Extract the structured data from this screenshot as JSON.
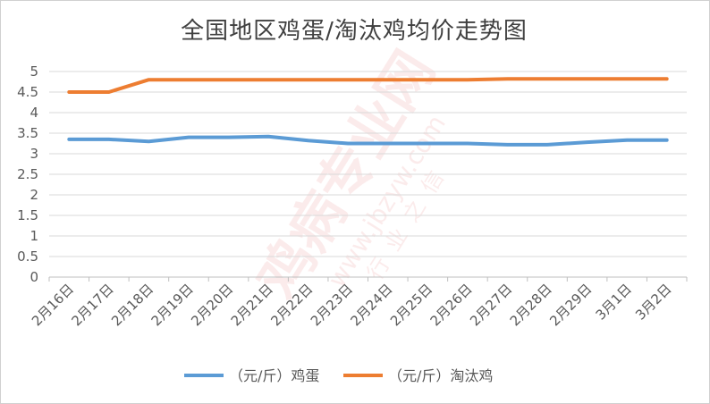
{
  "chart_data": {
    "type": "line",
    "title": "全国地区鸡蛋/淘汰鸡均价走势图",
    "xlabel": "",
    "ylabel": "",
    "categories": [
      "2月16日",
      "2月17日",
      "2月18日",
      "2月19日",
      "2月20日",
      "2月21日",
      "2月22日",
      "2月23日",
      "2月24日",
      "2月25日",
      "2月26日",
      "2月27日",
      "2月28日",
      "2月29日",
      "3月1日",
      "3月2日"
    ],
    "ylim": [
      0,
      5
    ],
    "yticks": [
      "0",
      "0.5",
      "1",
      "1.5",
      "2",
      "2.5",
      "3",
      "3.5",
      "4",
      "4.5",
      "5"
    ],
    "grid": true,
    "legend_position": "bottom",
    "series": [
      {
        "name": "（元/斤）鸡蛋",
        "color": "#5b9bd5",
        "values": [
          3.35,
          3.35,
          3.3,
          3.4,
          3.4,
          3.42,
          3.32,
          3.25,
          3.25,
          3.25,
          3.25,
          3.22,
          3.22,
          3.28,
          3.33,
          3.33
        ]
      },
      {
        "name": "（元/斤）淘汰鸡",
        "color": "#ed7d31",
        "values": [
          4.5,
          4.5,
          4.8,
          4.8,
          4.8,
          4.8,
          4.8,
          4.8,
          4.8,
          4.8,
          4.8,
          4.82,
          4.82,
          4.82,
          4.82,
          4.82
        ]
      }
    ]
  },
  "watermark": {
    "brand": "鸡病专业网",
    "url": "www.jbzyw.com",
    "slogan": "行业之信"
  }
}
